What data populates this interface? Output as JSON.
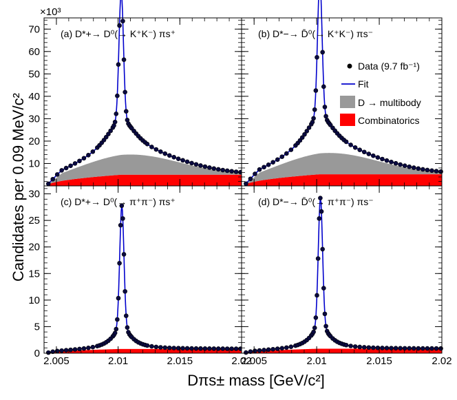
{
  "chart_data": {
    "type": "line",
    "xlabel": "Dπs± mass [GeV/c²]",
    "ylabel": "Candidates per 0.09 MeV/c²",
    "x_range": [
      2.004,
      2.02
    ],
    "x_ticks": [
      "2.005",
      "2.01",
      "2.015",
      "2.02"
    ],
    "x_tick_values": [
      2.005,
      2.01,
      2.015,
      2.02
    ],
    "exponent_label": "×10³",
    "top_row": {
      "ylim": [
        0,
        75000
      ],
      "y_ticks": [
        "10",
        "20",
        "30",
        "40",
        "50",
        "60",
        "70"
      ],
      "y_tick_values": [
        10000,
        20000,
        30000,
        40000,
        50000,
        60000,
        70000
      ]
    },
    "bottom_row": {
      "ylim": [
        0,
        31500
      ],
      "y_ticks": [
        "0",
        "5",
        "10",
        "15",
        "20",
        "25",
        "30"
      ],
      "y_tick_values": [
        0,
        5000,
        10000,
        15000,
        20000,
        25000,
        30000
      ]
    },
    "legend": {
      "data": "Data (9.7 fb⁻¹)",
      "fit": "Fit",
      "multibody": "D → multibody",
      "combinatorics": "Combinatorics"
    },
    "colors": {
      "data": "#000000",
      "data_marker": "#0a0a40",
      "fit": "#0000cc",
      "multibody": "#999999",
      "combinatorics": "#ff0000"
    },
    "panels": [
      {
        "id": "a",
        "label": "(a) D*+→ D⁰(→ K⁺K⁻) πs⁺",
        "row": "top",
        "peak_x": 2.01025,
        "peak": 57500,
        "sigma": 0.00018,
        "tail_amplitude": 15500,
        "tail_width": 0.0015,
        "multibody_peak": 9000,
        "multibody_center": 2.011,
        "multibody_width": 0.004,
        "combinatorics_max": 5000,
        "tail_end": 4200
      },
      {
        "id": "b",
        "label": "(b) D*−→ D̄⁰(→ K⁺K⁻) πs⁻",
        "row": "top",
        "peak_x": 2.01025,
        "peak": 61000,
        "sigma": 0.00018,
        "tail_amplitude": 16500,
        "tail_width": 0.0015,
        "multibody_peak": 9500,
        "multibody_center": 2.011,
        "multibody_width": 0.004,
        "combinatorics_max": 5200,
        "tail_end": 4500
      },
      {
        "id": "c",
        "label": "(c) D*+→ D⁰(→ π⁺π⁻) πs⁺",
        "row": "bottom",
        "peak_x": 2.0103,
        "peak": 23000,
        "sigma": 0.00017,
        "tail_amplitude": 4000,
        "tail_width": 0.0009,
        "multibody_peak": 0,
        "multibody_center": 2.011,
        "multibody_width": 0.004,
        "combinatorics_max": 800,
        "tail_end": 900
      },
      {
        "id": "d",
        "label": "(d) D*−→ D̄⁰(→ π⁺π⁻) πs⁻",
        "row": "bottom",
        "peak_x": 2.0103,
        "peak": 24200,
        "sigma": 0.00017,
        "tail_amplitude": 4200,
        "tail_width": 0.0009,
        "multibody_peak": 0,
        "multibody_center": 2.011,
        "multibody_width": 0.004,
        "combinatorics_max": 850,
        "tail_end": 950
      }
    ]
  }
}
